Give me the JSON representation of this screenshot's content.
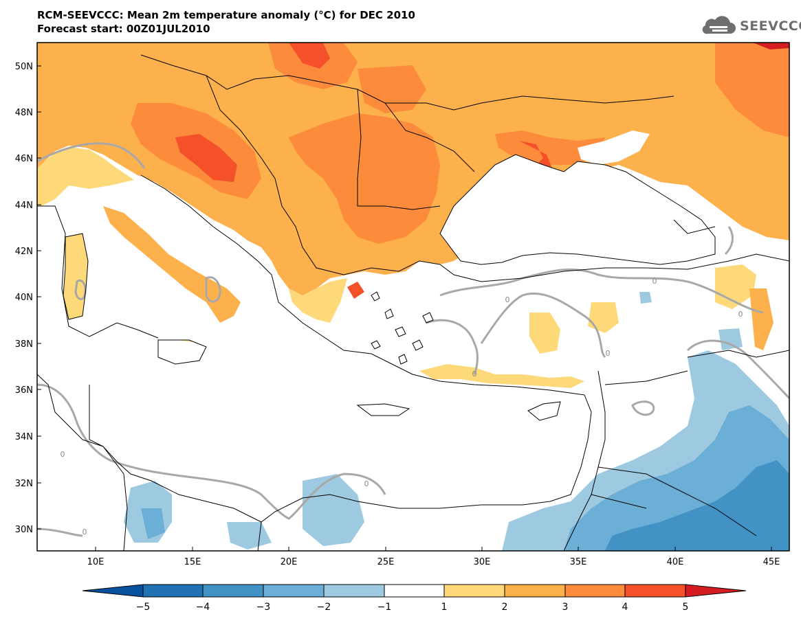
{
  "title": {
    "line1": "RCM-SEEVCCC: Mean 2m temperature anomaly (°C) for DEC 2010",
    "line2": "Forecast start: 00Z01JUL2010"
  },
  "logo": {
    "text": "SEEVCCC",
    "icon": "cloud-icon",
    "color": "#6e6e6e"
  },
  "map": {
    "lat_labels": [
      "50N",
      "48N",
      "46N",
      "44N",
      "42N",
      "40N",
      "38N",
      "36N",
      "34N",
      "32N",
      "30N"
    ],
    "lon_labels": [
      "10E",
      "15E",
      "20E",
      "25E",
      "30E",
      "35E",
      "40E",
      "45E"
    ],
    "contour_label": "0",
    "colors": {
      "sea": "#ffffff",
      "anomaly_1_2": "#fed97a",
      "anomaly_2_3": "#fdb14d",
      "anomaly_3_4": "#fc8c3c",
      "anomaly_4_5": "#f4502a",
      "anomaly_gt_5": "#d41c21",
      "anomaly_m1_m2": "#9ecae1",
      "anomaly_m2_m3": "#6baed6",
      "anomaly_m3_m4": "#4292c6",
      "contour": "#a8a8a8",
      "border": "#000000"
    }
  },
  "colorbar": {
    "labels": [
      "−5",
      "−4",
      "−3",
      "−2",
      "−1",
      "1",
      "2",
      "3",
      "4",
      "5"
    ],
    "segment_colors": [
      "#08519c",
      "#2171b5",
      "#4292c6",
      "#6baed6",
      "#9ecae1",
      "#ffffff",
      "#fed97a",
      "#fdb14d",
      "#fc8c3c",
      "#f4502a",
      "#d41c21"
    ]
  }
}
